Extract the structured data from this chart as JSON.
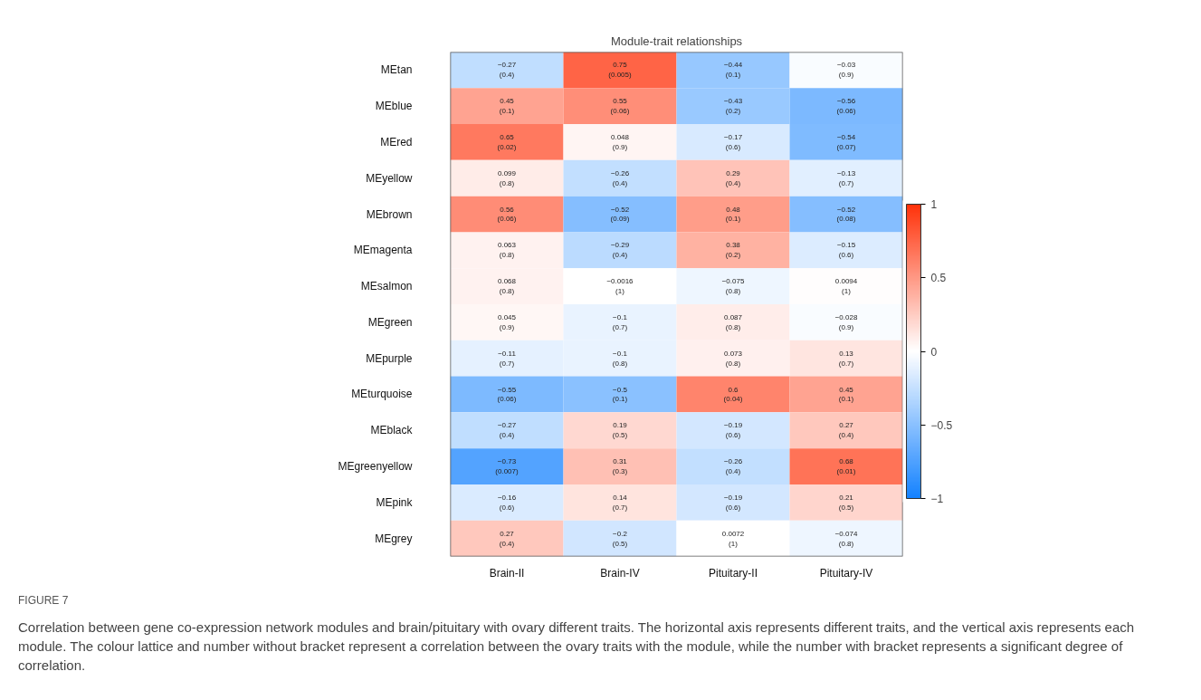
{
  "chart_data": {
    "type": "heatmap",
    "title": "Module-trait relationships",
    "categories": [
      "Brain-II",
      "Brain-IV",
      "Pituitary-II",
      "Pituitary-IV"
    ],
    "y_categories": [
      "MEtan",
      "MEblue",
      "MEred",
      "MEyellow",
      "MEbrown",
      "MEmagenta",
      "MEsalmon",
      "MEgreen",
      "MEpurple",
      "MEturquoise",
      "MEblack",
      "MEgreenyellow",
      "MEpink",
      "MEgrey"
    ],
    "cells": [
      [
        -0.27,
        0.75,
        -0.44,
        -0.03
      ],
      [
        0.45,
        0.55,
        -0.43,
        -0.56
      ],
      [
        0.65,
        0.048,
        -0.17,
        -0.54
      ],
      [
        0.099,
        -0.26,
        0.29,
        -0.13
      ],
      [
        0.56,
        -0.52,
        0.48,
        -0.52
      ],
      [
        0.063,
        -0.29,
        0.38,
        -0.15
      ],
      [
        0.068,
        -0.0016,
        -0.075,
        0.0094
      ],
      [
        0.045,
        -0.1,
        0.087,
        -0.028
      ],
      [
        -0.11,
        -0.1,
        0.073,
        0.13
      ],
      [
        -0.55,
        -0.5,
        0.6,
        0.45
      ],
      [
        -0.27,
        0.19,
        -0.19,
        0.27
      ],
      [
        -0.73,
        0.31,
        -0.26,
        0.68
      ],
      [
        -0.16,
        0.14,
        -0.19,
        0.21
      ],
      [
        0.27,
        -0.2,
        0.0072,
        -0.074
      ]
    ],
    "cell_labels": [
      [
        "−0.27\n(0.4)",
        "0.75\n(0.005)",
        "−0.44\n(0.1)",
        "−0.03\n(0.9)"
      ],
      [
        "0.45\n(0.1)",
        "0.55\n(0.06)",
        "−0.43\n(0.2)",
        "−0.56\n(0.06)"
      ],
      [
        "0.65\n(0.02)",
        "0.048\n(0.9)",
        "−0.17\n(0.6)",
        "−0.54\n(0.07)"
      ],
      [
        "0.099\n(0.8)",
        "−0.26\n(0.4)",
        "0.29\n(0.4)",
        "−0.13\n(0.7)"
      ],
      [
        "0.56\n(0.06)",
        "−0.52\n(0.09)",
        "0.48\n(0.1)",
        "−0.52\n(0.08)"
      ],
      [
        "0.063\n(0.8)",
        "−0.29\n(0.4)",
        "0.38\n(0.2)",
        "−0.15\n(0.6)"
      ],
      [
        "0.068\n(0.8)",
        "−0.0016\n(1)",
        "−0.075\n(0.8)",
        "0.0094\n(1)"
      ],
      [
        "0.045\n(0.9)",
        "−0.1\n(0.7)",
        "0.087\n(0.8)",
        "−0.028\n(0.9)"
      ],
      [
        "−0.11\n(0.7)",
        "−0.1\n(0.8)",
        "0.073\n(0.8)",
        "0.13\n(0.7)"
      ],
      [
        "−0.55\n(0.06)",
        "−0.5\n(0.1)",
        "0.6\n(0.04)",
        "0.45\n(0.1)"
      ],
      [
        "−0.27\n(0.4)",
        "0.19\n(0.5)",
        "−0.19\n(0.6)",
        "0.27\n(0.4)"
      ],
      [
        "−0.73\n(0.007)",
        "0.31\n(0.3)",
        "−0.26\n(0.4)",
        "0.68\n(0.01)"
      ],
      [
        "−0.16\n(0.6)",
        "0.14\n(0.7)",
        "−0.19\n(0.6)",
        "0.21\n(0.5)"
      ],
      [
        "0.27\n(0.4)",
        "−0.2\n(0.5)",
        "0.0072\n(1)",
        "−0.074\n(0.8)"
      ]
    ],
    "clim": [
      -1,
      1
    ],
    "cticks": [
      -1,
      -0.5,
      0,
      0.5,
      1
    ],
    "grid": false,
    "annotations": [
      "FIGURE 7",
      "Correlation between gene co-expression network modules and brain/pituitary with ovary different traits. The horizontal axis represents different traits, and the vertical axis represents each module. The colour lattice and number without bracket represent a correlation between the ovary traits with the module, while the number with bracket represents a significant degree of correlation."
    ]
  }
}
